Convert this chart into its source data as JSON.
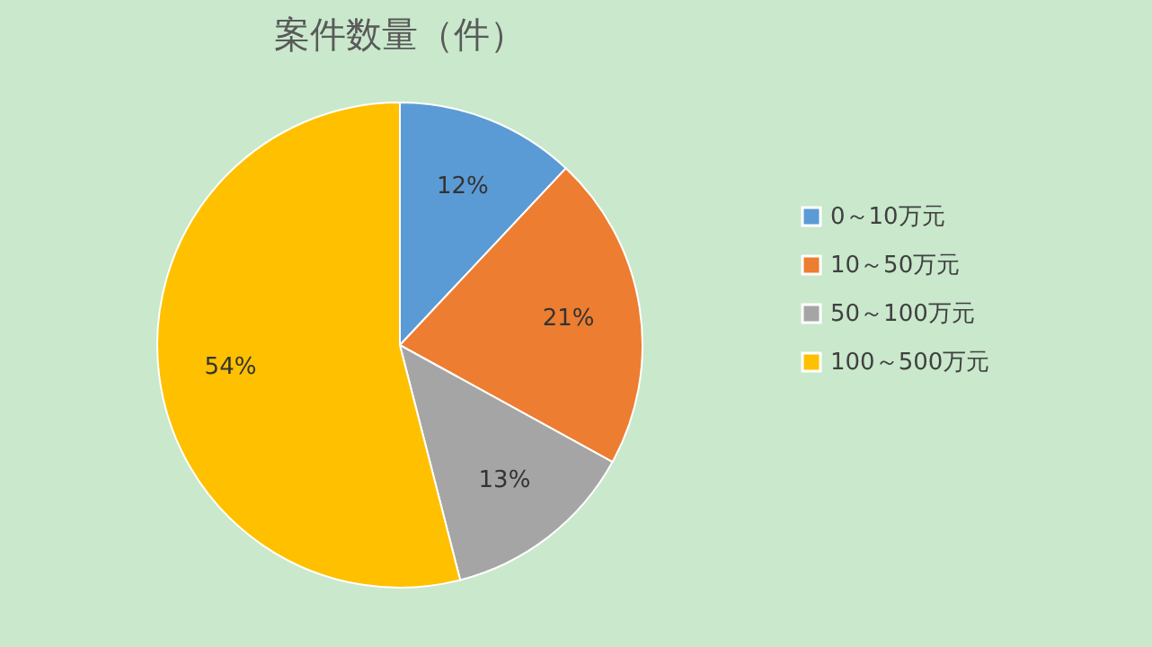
{
  "chart_data": {
    "type": "pie",
    "title": "案件数量（件）",
    "categories": [
      "0～10万元",
      "10～50万元",
      "50～100万元",
      "100～500万元"
    ],
    "values": [
      12,
      21,
      13,
      54
    ],
    "colors": [
      "#5b9bd5",
      "#ed7d31",
      "#a5a5a5",
      "#ffc000"
    ],
    "value_labels": [
      "12%",
      "21%",
      "13%",
      "54%"
    ],
    "legend": "right"
  }
}
